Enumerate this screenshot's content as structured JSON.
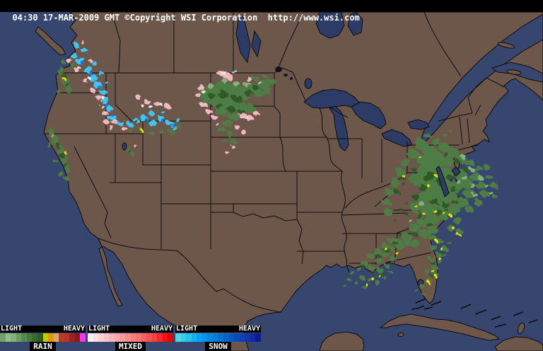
{
  "header": {
    "text": "04:30 17-MAR-2009 GMT ©Copyright WSI Corporation  http://www.wsi.com"
  },
  "map": {
    "colors": {
      "ocean": "#36466e",
      "land": "#6d574a",
      "lake": "#2c3c66",
      "border": "#0d0d0d",
      "rain_light_green": "#85ae79",
      "rain_green": "#4d7c44",
      "rain_dark_green": "#2f5a28",
      "rain_heavy_yellow": "#e4e400",
      "mixed_pink": "#f2b8c2",
      "mixed_light_pink": "#f8dce0",
      "snow_cyan": "#3cc6f4",
      "snow_blue": "#1878e0"
    }
  },
  "legend": {
    "groups": [
      {
        "name": "RAIN",
        "light_label": "LIGHT",
        "heavy_label": "HEAVY",
        "colors": [
          "#73a06c",
          "#94bd8c",
          "#85b27c",
          "#699a60",
          "#588a50",
          "#487a40",
          "#386a30",
          "#2a5c24",
          "#c8c800",
          "#e09800",
          "#d8a878",
          "#b44020",
          "#c03028",
          "#a02020",
          "#8c1616",
          "#f830f8"
        ]
      },
      {
        "name": "MIXED",
        "light_label": "LIGHT",
        "heavy_label": "HEAVY",
        "colors": [
          "#f8eeee",
          "#f8e0e0",
          "#f8d2d2",
          "#f8c4c4",
          "#f8b6b6",
          "#f8a8a8",
          "#f89a9a",
          "#f88c8c",
          "#f87e7e",
          "#f87070",
          "#f86060",
          "#f85050",
          "#f84040",
          "#f82828",
          "#f81010",
          "#e80404"
        ]
      },
      {
        "name": "SNOW",
        "light_label": "LIGHT",
        "heavy_label": "HEAVY",
        "colors": [
          "#48d8e8",
          "#38cce8",
          "#28c0ec",
          "#14b0f0",
          "#04a4f0",
          "#0496ec",
          "#0488e4",
          "#047cdc",
          "#0470d4",
          "#0464cc",
          "#0458c4",
          "#084cbc",
          "#0c40b4",
          "#1034ac",
          "#1028a0",
          "#0c1c94"
        ]
      }
    ]
  }
}
